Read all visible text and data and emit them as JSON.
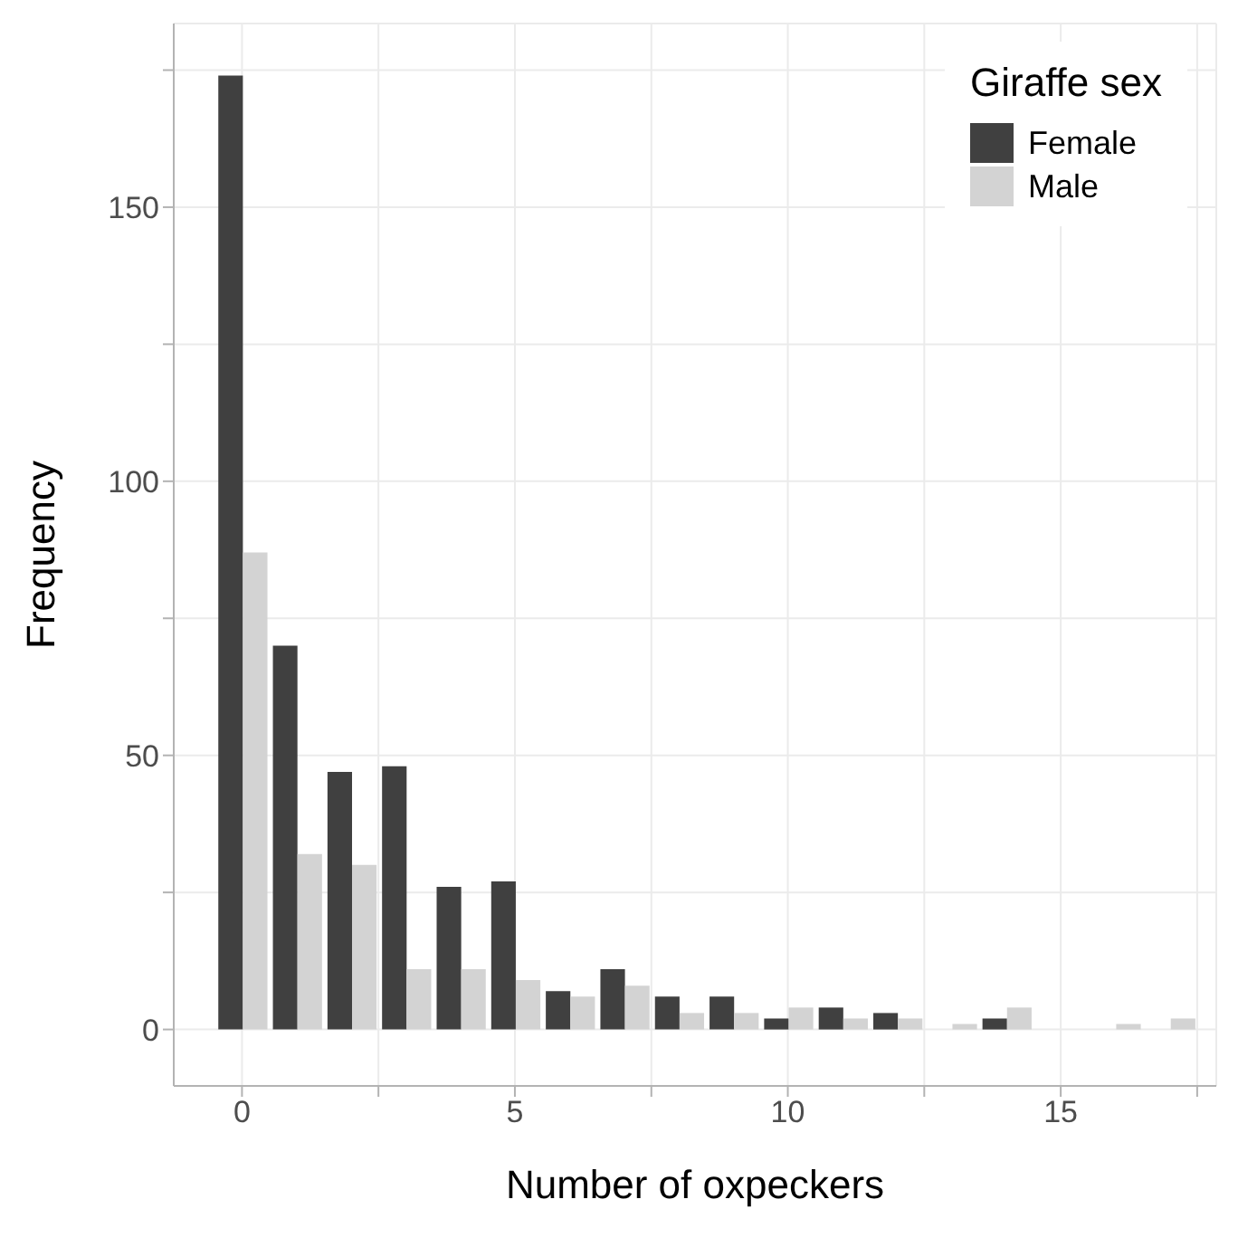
{
  "chart_data": {
    "type": "bar",
    "xlabel": "Number of oxpeckers",
    "ylabel": "Frequency",
    "legend_title": "Giraffe sex",
    "x": [
      0,
      1,
      2,
      3,
      4,
      5,
      6,
      7,
      8,
      9,
      10,
      11,
      12,
      13,
      14,
      15,
      16,
      17
    ],
    "series": [
      {
        "name": "Female",
        "color": "#404040",
        "values": [
          174,
          70,
          47,
          48,
          26,
          27,
          7,
          11,
          6,
          6,
          2,
          4,
          3,
          0,
          2,
          0,
          0,
          0
        ]
      },
      {
        "name": "Male",
        "color": "#d3d3d3",
        "values": [
          87,
          32,
          30,
          11,
          11,
          9,
          6,
          8,
          3,
          3,
          4,
          2,
          2,
          1,
          4,
          0,
          1,
          2
        ]
      }
    ],
    "xlim": [
      -1.25,
      17.85
    ],
    "xticks": [
      0,
      {
        "value": 2.5,
        "label": null
      },
      5,
      {
        "value": 7.5,
        "label": null
      },
      10,
      {
        "value": 12.5,
        "label": null
      },
      15,
      {
        "value": 17.5,
        "label": null
      }
    ],
    "ylim": [
      -10.3,
      183.5
    ],
    "yticks": [
      0,
      {
        "value": 25,
        "label": null
      },
      50,
      {
        "value": 75,
        "label": null
      },
      100,
      {
        "value": 125,
        "label": null
      },
      150,
      {
        "value": 175,
        "label": null
      }
    ],
    "grid": true,
    "legend": "top right"
  }
}
